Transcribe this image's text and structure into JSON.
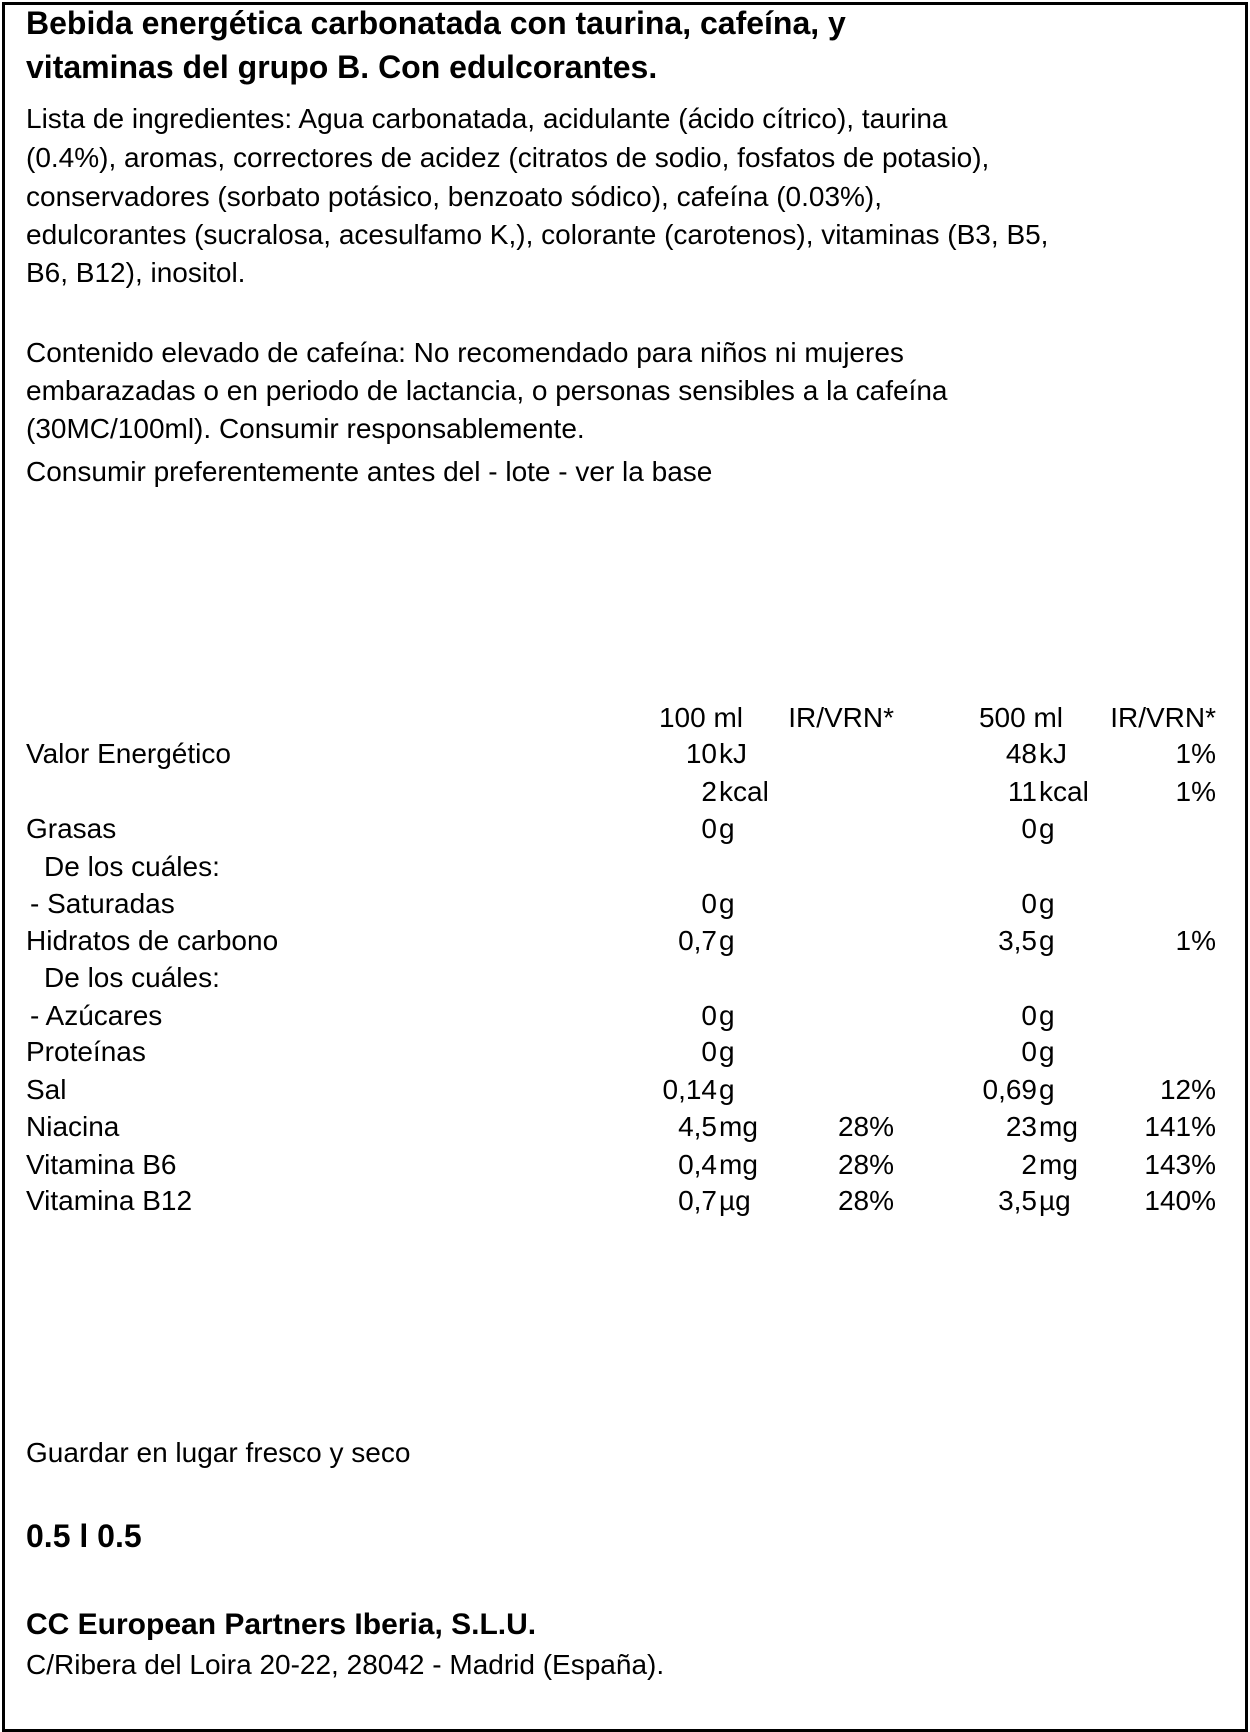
{
  "title_lines": [
    "Bebida energética carbonatada con taurina, cafeína, y",
    "vitaminas del grupo B. Con edulcorantes."
  ],
  "ingredients_lines": [
    "Lista de ingredientes: Agua carbonatada, acidulante (ácido cítrico), taurina",
    "(0.4%), aromas, correctores de acidez (citratos de sodio, fosfatos de potasio),",
    "conservadores (sorbato potásico, benzoato sódico), cafeína (0.03%),",
    "edulcorantes (sucralosa, acesulfamo K,), colorante (carotenos), vitaminas (B3, B5,",
    "B6, B12), inositol."
  ],
  "caffeine_lines": [
    "Contenido elevado de cafeína: No recomendado para niños ni mujeres",
    "embarazadas o en periodo de lactancia, o personas sensibles a la cafeína",
    "(30MC/100ml). Consumir responsablemente."
  ],
  "best_before": "Consumir preferentemente antes del - lote - ver la base",
  "table": {
    "headers": [
      "100 ml",
      "IR/VRN*",
      "500 ml",
      "IR/VRN*"
    ],
    "rows": [
      {
        "label": "Valor  Energético",
        "v1": "10",
        "u1": "kJ",
        "p1": "",
        "v2": "48",
        "u2": "kJ",
        "p2": "1%"
      },
      {
        "label": "",
        "v1": "2",
        "u1": "kcal",
        "p1": "",
        "v2": "11",
        "u2": "kcal",
        "p2": "1%"
      },
      {
        "label": "Grasas",
        "v1": "0",
        "u1": "g",
        "p1": "",
        "v2": "0",
        "u2": "g",
        "p2": ""
      },
      {
        "label": "De los cuáles:",
        "indent": 1,
        "v1": "",
        "u1": "",
        "p1": "",
        "v2": "",
        "u2": "",
        "p2": ""
      },
      {
        "label": "-  Saturadas",
        "indent": 2,
        "v1": "0",
        "u1": "g",
        "p1": "",
        "v2": "0",
        "u2": "g",
        "p2": ""
      },
      {
        "label": "Hidratos  de  carbono",
        "v1": "0,7",
        "u1": "g",
        "p1": "",
        "v2": "3,5",
        "u2": "g",
        "p2": "1%"
      },
      {
        "label": "De los cuáles:",
        "indent": 1,
        "v1": "",
        "u1": "",
        "p1": "",
        "v2": "",
        "u2": "",
        "p2": ""
      },
      {
        "label": "- Azúcares",
        "indent": 2,
        "v1": "0",
        "u1": "g",
        "p1": "",
        "v2": "0",
        "u2": "g",
        "p2": ""
      },
      {
        "label": "Proteínas",
        "v1": "0",
        "u1": "g",
        "p1": "",
        "v2": "0",
        "u2": "g",
        "p2": ""
      },
      {
        "label": "Sal",
        "v1": "0,14",
        "u1": "g",
        "p1": "",
        "v2": "0,69",
        "u2": "g",
        "p2": "12%"
      },
      {
        "label": "Niacina",
        "v1": "4,5",
        "u1": "mg",
        "p1": "28%",
        "v2": "23",
        "u2": "mg",
        "p2": "141%"
      },
      {
        "label": "Vitamina  B6",
        "v1": "0,4",
        "u1": "mg",
        "p1": "28%",
        "v2": "2",
        "u2": "mg",
        "p2": "143%"
      },
      {
        "label": "Vitamina  B12",
        "v1": "0,7",
        "u1": "µg",
        "p1": "28%",
        "v2": "3,5",
        "u2": "µg",
        "p2": "140%"
      }
    ]
  },
  "storage": "Guardar en lugar fresco y seco",
  "volume": "0.5 l 0.5",
  "company": "CC European Partners Iberia, S.L.U.",
  "address": "C/Ribera del Loira 20-22, 28042 - Madrid (España)."
}
